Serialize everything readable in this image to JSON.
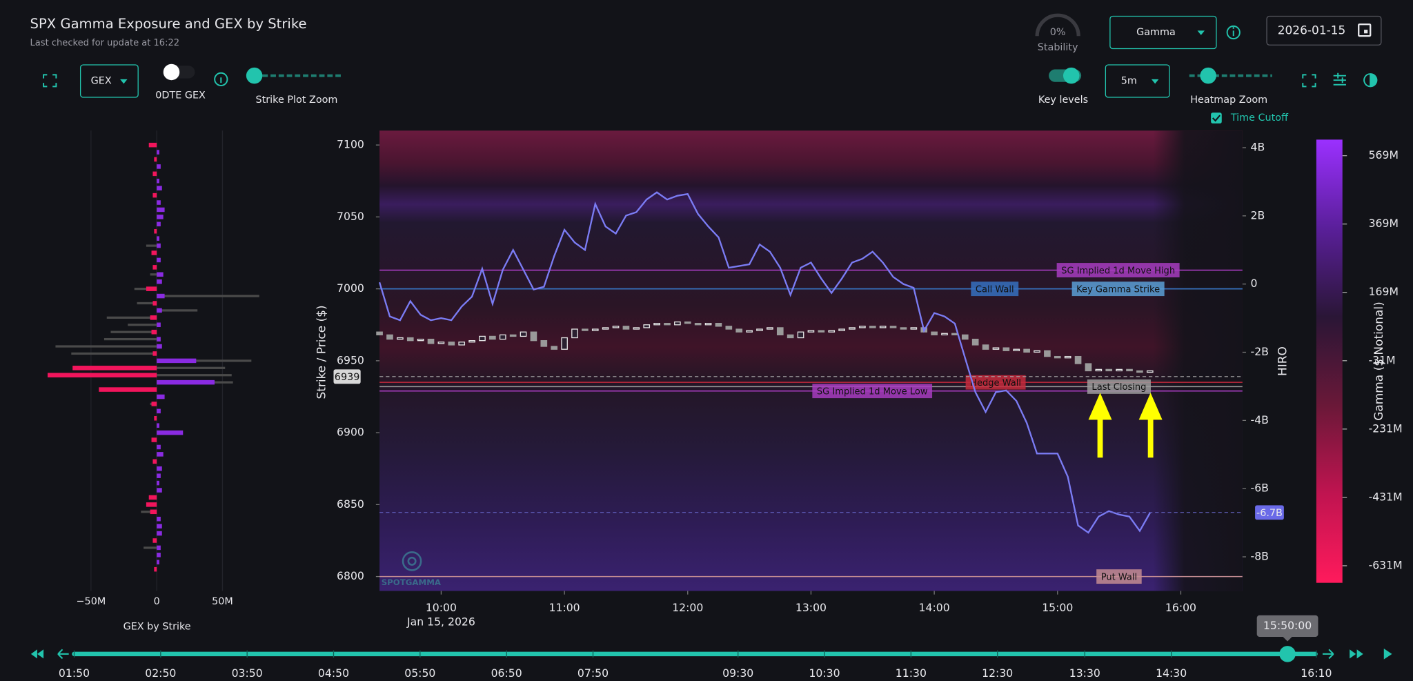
{
  "header": {
    "title": "SPX Gamma Exposure and GEX by Strike",
    "subtitle": "Last checked for update at 16:22"
  },
  "controls": {
    "stability_value": "0%",
    "stability_label": "Stability",
    "mode": "Gamma",
    "date": "2026-01-15",
    "gex_mode": "GEX",
    "dte_label": "0DTE GEX",
    "strike_zoom_label": "Strike Plot Zoom",
    "key_levels_label": "Key levels",
    "interval": "5m",
    "heatmap_zoom_label": "Heatmap Zoom",
    "time_cutoff_label": "Time Cutoff"
  },
  "chart_data": [
    {
      "type": "hbar",
      "title": "GEX by Strike",
      "y": [
        7100,
        7095,
        7090,
        7085,
        7080,
        7075,
        7070,
        7065,
        7060,
        7055,
        7050,
        7045,
        7040,
        7035,
        7030,
        7025,
        7020,
        7015,
        7010,
        7005,
        7000,
        6995,
        6990,
        6985,
        6980,
        6975,
        6970,
        6965,
        6960,
        6955,
        6950,
        6945,
        6940,
        6935,
        6930,
        6925,
        6920,
        6915,
        6910,
        6905,
        6900,
        6895,
        6890,
        6885,
        6880,
        6875,
        6870,
        6865,
        6860,
        6855,
        6850,
        6845,
        6840,
        6835,
        6830,
        6825,
        6820,
        6815,
        6810,
        6805
      ],
      "ylim": [
        6790,
        7110
      ],
      "xlim": [
        -95,
        90
      ],
      "xticks": [
        {
          "value": -50,
          "label": "−50M"
        },
        0,
        {
          "value": 50,
          "label": "50M"
        }
      ],
      "positive_color": "#8a2be2",
      "negative_color": "#f2155c",
      "series": [
        {
          "color": "#4a4a4a",
          "values": [
            null,
            null,
            null,
            null,
            null,
            null,
            null,
            null,
            null,
            null,
            null,
            null,
            null,
            null,
            -8,
            null,
            null,
            null,
            -5,
            null,
            -17,
            78,
            -15,
            31,
            -38,
            -22,
            -35,
            -40,
            -77,
            -65,
            72,
            52,
            57,
            58,
            null,
            null,
            -5,
            null,
            null,
            null,
            null,
            null,
            null,
            null,
            null,
            null,
            null,
            null,
            null,
            null,
            null,
            -12,
            null,
            null,
            null,
            null,
            -10,
            null,
            null,
            null
          ]
        },
        {
          "values": [
            -6,
            2,
            -2,
            3,
            -3,
            2,
            4,
            -3,
            3,
            6,
            5,
            3,
            -2,
            2,
            3,
            -4,
            3,
            -3,
            5,
            4,
            -8,
            6,
            -3,
            4,
            -5,
            3,
            -4,
            3,
            4,
            -3,
            30,
            -64,
            -83,
            44,
            -44,
            6,
            -4,
            3,
            -2,
            2,
            20,
            -4,
            3,
            5,
            -3,
            4,
            3,
            2,
            4,
            -6,
            -8,
            -5,
            3,
            4,
            4,
            -3,
            3,
            3,
            2,
            -2
          ]
        }
      ]
    },
    {
      "type": "candlestick",
      "y_label": "Strike / Price ($)",
      "y2_label": "HIRO",
      "x_date_label": "Jan 15, 2026",
      "watermark": "SPOTGAMMA",
      "x": [
        "09:30",
        "09:35",
        "09:40",
        "09:45",
        "09:50",
        "09:55",
        "10:00",
        "10:05",
        "10:10",
        "10:15",
        "10:20",
        "10:25",
        "10:30",
        "10:35",
        "10:40",
        "10:45",
        "10:50",
        "10:55",
        "11:00",
        "11:05",
        "11:10",
        "11:15",
        "11:20",
        "11:25",
        "11:30",
        "11:35",
        "11:40",
        "11:45",
        "11:50",
        "11:55",
        "12:00",
        "12:05",
        "12:10",
        "12:15",
        "12:20",
        "12:25",
        "12:30",
        "12:35",
        "12:40",
        "12:45",
        "12:50",
        "12:55",
        "13:00",
        "13:05",
        "13:10",
        "13:15",
        "13:20",
        "13:25",
        "13:30",
        "13:35",
        "13:40",
        "13:45",
        "13:50",
        "13:55",
        "14:00",
        "14:05",
        "14:10",
        "14:15",
        "14:20",
        "14:25",
        "14:30",
        "14:35",
        "14:40",
        "14:45",
        "14:50",
        "14:55",
        "15:00",
        "15:05",
        "15:10",
        "15:15",
        "15:20",
        "15:25",
        "15:30",
        "15:35",
        "15:40",
        "15:45"
      ],
      "open": [
        6970,
        6968,
        6965,
        6966,
        6964,
        6965,
        6962,
        6963,
        6961,
        6963,
        6964,
        6967,
        6965,
        6968,
        6967,
        6970,
        6964,
        6960,
        6958,
        6966,
        6972,
        6971,
        6972,
        6973,
        6974,
        6972,
        6973,
        6975,
        6976,
        6975,
        6977,
        6976,
        6975,
        6976,
        6974,
        6972,
        6970,
        6971,
        6972,
        6973,
        6968,
        6966,
        6970,
        6971,
        6970,
        6971,
        6972,
        6973,
        6974,
        6973,
        6974,
        6973,
        6972,
        6973,
        6970,
        6968,
        6969,
        6968,
        6965,
        6961,
        6958,
        6959,
        6957,
        6958,
        6956,
        6957,
        6953,
        6952,
        6953,
        6948,
        6943,
        6944,
        6943,
        6944,
        6943,
        6942
      ],
      "close": [
        6968,
        6965,
        6966,
        6964,
        6965,
        6962,
        6963,
        6961,
        6963,
        6964,
        6967,
        6965,
        6968,
        6967,
        6970,
        6964,
        6960,
        6958,
        6966,
        6972,
        6971,
        6972,
        6973,
        6974,
        6972,
        6973,
        6975,
        6976,
        6975,
        6977,
        6976,
        6975,
        6976,
        6974,
        6972,
        6970,
        6971,
        6972,
        6973,
        6968,
        6966,
        6970,
        6971,
        6970,
        6971,
        6972,
        6973,
        6974,
        6973,
        6974,
        6973,
        6972,
        6973,
        6970,
        6968,
        6969,
        6968,
        6965,
        6961,
        6958,
        6959,
        6957,
        6958,
        6956,
        6957,
        6953,
        6952,
        6953,
        6948,
        6943,
        6944,
        6943,
        6944,
        6943,
        6942,
        6943
      ],
      "up_color": "#e6e6e6",
      "down_color": "#9a9a9a",
      "xlim": [
        "09:30",
        "16:30"
      ],
      "xticks": [
        "10:00",
        "11:00",
        "12:00",
        "13:00",
        "14:00",
        "15:00",
        "16:00"
      ],
      "ylim": [
        6790,
        7110
      ],
      "yticks": [
        6800,
        6850,
        6900,
        6950,
        7000,
        7050,
        7100
      ],
      "y2lim": [
        -9,
        4.5
      ],
      "y2ticks": [
        {
          "value": 4,
          "label": "4B"
        },
        {
          "value": 2,
          "label": "2B"
        },
        0,
        {
          "value": -2,
          "label": "-2B"
        },
        {
          "value": -4,
          "label": "-4B"
        },
        {
          "value": -6,
          "label": "-6B"
        },
        {
          "value": -8,
          "label": "-8B"
        }
      ],
      "series": [
        {
          "color": "#7b7cf4",
          "axis": "y2",
          "values": [
            0.05,
            -0.95,
            -1.06,
            -0.5,
            -0.9,
            -1.06,
            -1.0,
            -1.06,
            -0.66,
            -0.37,
            0.45,
            -0.58,
            0.42,
            1.0,
            0.42,
            -0.16,
            -0.08,
            0.82,
            1.59,
            1.22,
            1.0,
            2.35,
            1.69,
            1.48,
            2.01,
            2.11,
            2.48,
            2.69,
            2.48,
            2.59,
            2.64,
            2.06,
            1.69,
            1.37,
            0.48,
            0.53,
            0.58,
            1.16,
            0.95,
            0.48,
            -0.32,
            0.48,
            0.63,
            0.16,
            -0.26,
            0.16,
            0.63,
            0.74,
            0.95,
            0.63,
            0.21,
            0,
            -0.11,
            -1.37,
            -0.85,
            -0.95,
            -1.16,
            -2.17,
            -3.17,
            -3.75,
            -3.17,
            -3.12,
            -3.43,
            -4.07,
            -4.97,
            -4.97,
            -4.97,
            -5.65,
            -7.08,
            -7.29,
            -6.82,
            -6.66,
            -6.76,
            -6.82,
            -7.24,
            -6.71
          ]
        }
      ],
      "current_price": 6939,
      "hiro_last": {
        "value": -6.7,
        "label": "-6.7B"
      },
      "levels": [
        {
          "name": "SG Implied 1d Move High",
          "value": 7013,
          "color": "#a73cc0"
        },
        {
          "name": "Key Gamma Strike",
          "value": 7000,
          "color": "#5b9fd6"
        },
        {
          "name": "Call Wall",
          "value": 7000,
          "color": "#3570c0"
        },
        {
          "name": "Hedge Wall",
          "value": 6935,
          "color": "#c42a3c"
        },
        {
          "name": "SG Implied 1d Move Low",
          "value": 6929,
          "color": "#a73cc0"
        },
        {
          "name": "Last Closing",
          "value": 6932,
          "color": "#9c9c9c"
        },
        {
          "name": "Put Wall",
          "value": 6800,
          "color": "#c48c92"
        }
      ]
    },
    {
      "type": "colorbar",
      "label": "Gamma ($ Notional)",
      "lim": [
        -681,
        616
      ],
      "ticks": [
        {
          "value": 569,
          "label": "569M"
        },
        {
          "value": 369,
          "label": "369M"
        },
        {
          "value": 169,
          "label": "169M"
        },
        {
          "value": -31,
          "label": "-31M"
        },
        {
          "value": -231,
          "label": "-231M"
        },
        {
          "value": -431,
          "label": "-431M"
        },
        {
          "value": -631,
          "label": "-631M"
        }
      ],
      "colors": [
        "#9b30ff",
        "#5a1f9a",
        "#2a1636",
        "#6a1838",
        "#c01450",
        "#ff1a5c"
      ]
    }
  ],
  "timeline": {
    "current": "15:50:00",
    "labels": [
      "01:50",
      "02:50",
      "03:50",
      "04:50",
      "05:50",
      "06:50",
      "07:50",
      "09:30",
      "10:30",
      "11:30",
      "12:30",
      "13:30",
      "14:30",
      "16:10"
    ]
  }
}
